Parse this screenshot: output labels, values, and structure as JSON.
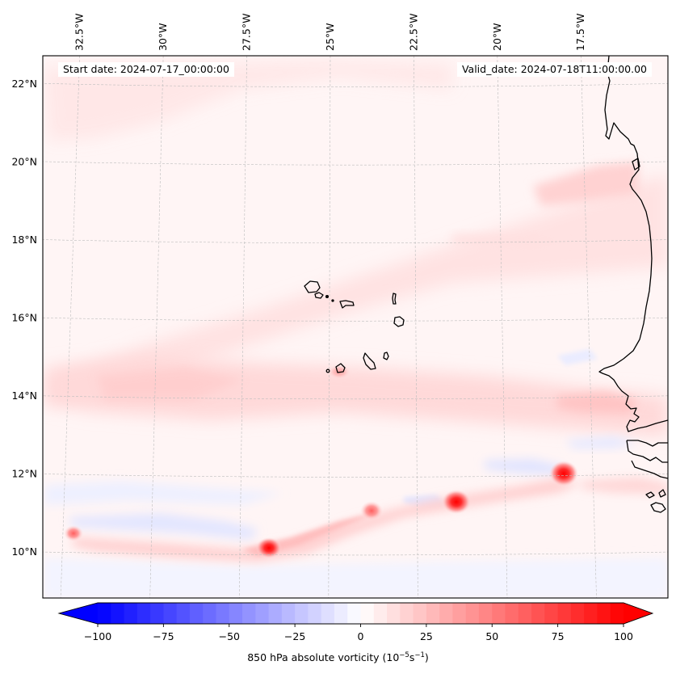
{
  "chart_data": {
    "type": "heatmap",
    "title": "",
    "map_variable": "850 hPa absolute vorticity",
    "units": "10^-5 s^-1",
    "annotations": {
      "start_date": "Start date: 2024-07-17_00:00:00",
      "valid_date": "Valid_date: 2024-07-18T11:00:00.00"
    },
    "extent": {
      "lon_min": -33.0,
      "lon_max": -15.5,
      "lat_min": 8.9,
      "lat_max": 22.8
    },
    "lon_ticks": [
      {
        "value": -32.5,
        "label": "32.5°W"
      },
      {
        "value": -30.0,
        "label": "30°W"
      },
      {
        "value": -27.5,
        "label": "27.5°W"
      },
      {
        "value": -25.0,
        "label": "25°W"
      },
      {
        "value": -22.5,
        "label": "22.5°W"
      },
      {
        "value": -20.0,
        "label": "20°W"
      },
      {
        "value": -17.5,
        "label": "17.5°W"
      }
    ],
    "lat_ticks": [
      {
        "value": 22,
        "label": "22°N"
      },
      {
        "value": 20,
        "label": "20°N"
      },
      {
        "value": 18,
        "label": "18°N"
      },
      {
        "value": 16,
        "label": "16°N"
      },
      {
        "value": 14,
        "label": "14°N"
      },
      {
        "value": 12,
        "label": "12°N"
      },
      {
        "value": 10,
        "label": "10°N"
      }
    ],
    "gridlines": true,
    "colorbar": {
      "orientation": "horizontal",
      "placement": "bottom",
      "cmap": "bwr",
      "vmin": -100,
      "vmax": 100,
      "level_step": 5,
      "extend": "both",
      "min_color": "#0000ff",
      "mid_color": "#ffffff",
      "max_color": "#ff0000",
      "ticks": [
        {
          "value": -100,
          "label": "−100"
        },
        {
          "value": -75,
          "label": "−75"
        },
        {
          "value": -50,
          "label": "−50"
        },
        {
          "value": -25,
          "label": "−25"
        },
        {
          "value": 0,
          "label": "0"
        },
        {
          "value": 25,
          "label": "25"
        },
        {
          "value": 50,
          "label": "50"
        },
        {
          "value": 75,
          "label": "75"
        },
        {
          "value": 100,
          "label": "100"
        }
      ],
      "label_text": "850 hPa absolute vorticity (10",
      "label_exp1": "−5",
      "label_mid": "s",
      "label_exp2": "−1",
      "label_close": ")"
    },
    "features": [
      {
        "name": "vortex-maxima-east",
        "lon": -18.0,
        "lat": 12.05,
        "value": 95
      },
      {
        "name": "vortex-maxima-central",
        "lon": -21.9,
        "lat": 11.3,
        "value": 90
      },
      {
        "name": "vortex-maxima-west",
        "lon": -26.8,
        "lat": 10.1,
        "value": 75
      },
      {
        "name": "vortex-maxima-far-west",
        "lon": -31.7,
        "lat": 10.5,
        "value": 40
      },
      {
        "name": "band-positive-near-11N",
        "lon": -24.5,
        "lat": 11.0,
        "value": 25
      },
      {
        "name": "band-positive-14N",
        "lon": -27.0,
        "lat": 14.2,
        "value": 15
      },
      {
        "name": "band-negative-10.8N",
        "lon": -28.0,
        "lat": 10.8,
        "value": -10
      },
      {
        "name": "band-negative-12.5N",
        "lon": -18.5,
        "lat": 12.5,
        "value": -12
      },
      {
        "name": "band-positive-13.8N-coast",
        "lon": -17.5,
        "lat": 13.8,
        "value": 20
      },
      {
        "name": "band-positive-20N-coast",
        "lon": -17.0,
        "lat": 19.8,
        "value": 15
      }
    ],
    "coastlines": [
      "Cape Verde Islands",
      "West African coast (Mauritania, Senegal, Gambia, Guinea-Bissau)"
    ]
  }
}
